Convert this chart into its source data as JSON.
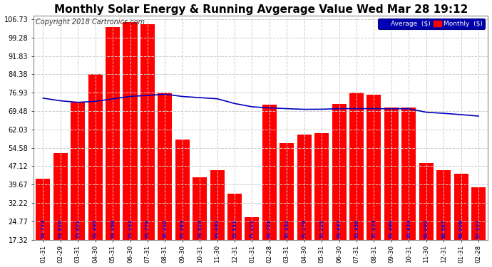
{
  "title": "Monthly Solar Energy & Running Avgerage Value Wed Mar 28 19:12",
  "copyright": "Copyright 2018 Cartronics.com",
  "categories": [
    "01-31",
    "02-29",
    "03-31",
    "04-30",
    "05-31",
    "06-30",
    "07-31",
    "08-31",
    "09-30",
    "10-31",
    "11-30",
    "12-31",
    "01-31",
    "02-28",
    "03-31",
    "04-30",
    "05-31",
    "06-30",
    "07-31",
    "08-31",
    "09-30",
    "10-31",
    "11-30",
    "12-31",
    "01-31",
    "02-28"
  ],
  "monthly_values": [
    42.0,
    52.5,
    73.0,
    84.5,
    103.5,
    105.5,
    104.8,
    77.0,
    58.0,
    42.5,
    45.5,
    36.0,
    26.5,
    72.0,
    56.5,
    60.0,
    60.5,
    72.5,
    77.0,
    76.0,
    71.0,
    71.0,
    48.5,
    45.5,
    44.0,
    38.5
  ],
  "avg_values": [
    74.714,
    73.636,
    73.021,
    73.405,
    74.398,
    75.441,
    75.779,
    76.33,
    75.384,
    74.924,
    74.461,
    72.531,
    71.222,
    70.751,
    70.452,
    70.178,
    70.225,
    70.447,
    70.456,
    70.434,
    70.4,
    70.434,
    69.005,
    68.567,
    68.028,
    67.437
  ],
  "bar_color": "#ff0000",
  "avg_line_color": "#0000bb",
  "bar_labels_color": "#0000ee",
  "background_color": "#ffffff",
  "grid_color": "#bbbbbb",
  "ylim_min": 17.32,
  "ylim_max": 106.73,
  "yticks": [
    17.32,
    24.77,
    32.22,
    39.67,
    47.12,
    54.58,
    62.03,
    69.48,
    76.93,
    84.38,
    91.83,
    99.28,
    106.73
  ],
  "legend_avg_label": "Average  ($)",
  "legend_monthly_label": "Monthly  ($)",
  "title_fontsize": 11,
  "copyright_fontsize": 7
}
